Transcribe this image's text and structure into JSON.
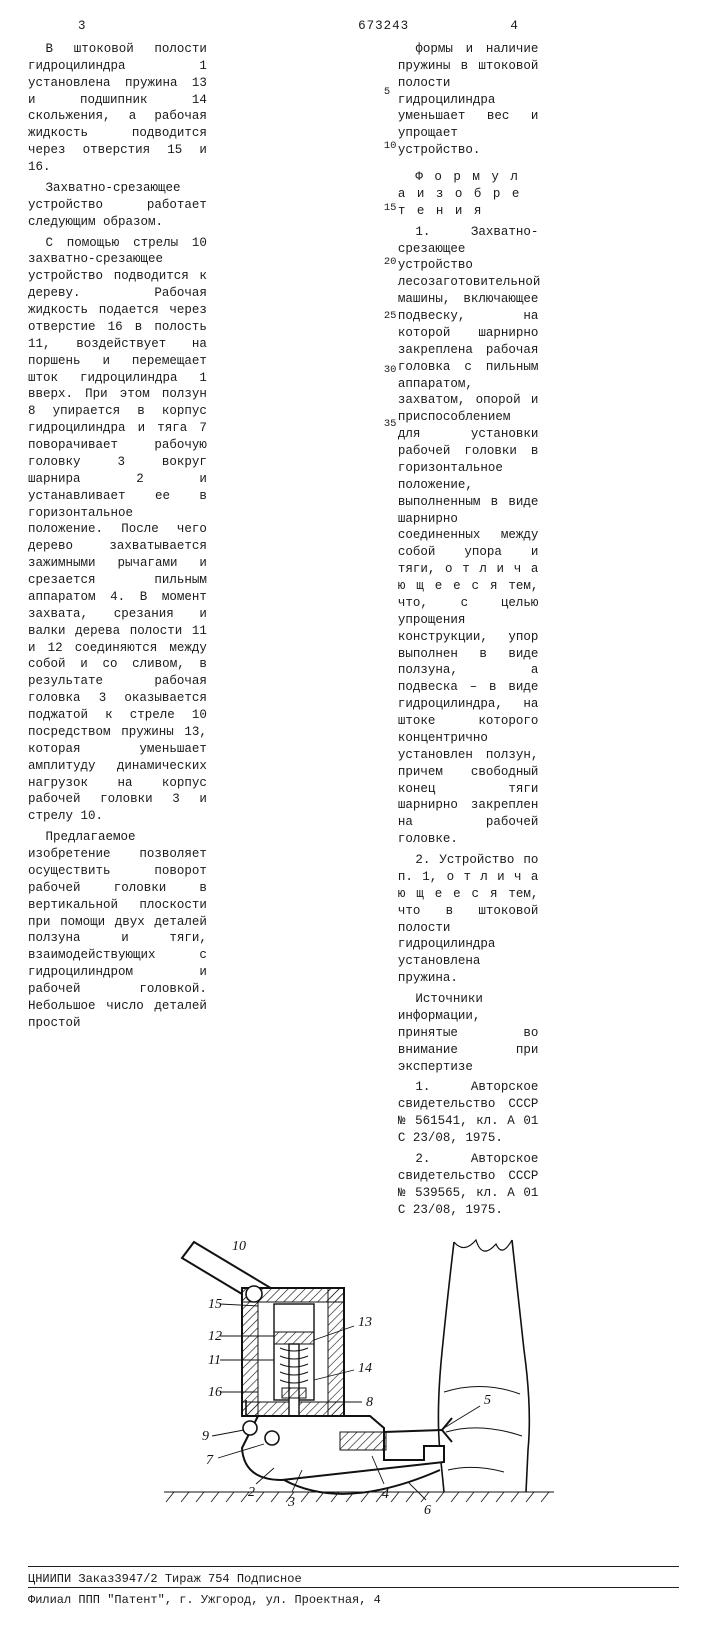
{
  "header": {
    "page_left": "3",
    "patent_no": "673243",
    "page_right": "4"
  },
  "left_col": {
    "p1": "В штоковой полости гидроцилиндра 1 установлена пружина 13 и подшипник 14 скольжения, а рабочая жидкость подводится через отверстия 15 и 16.",
    "p2": "Захватно-срезающее устройство работает следующим образом.",
    "p3": "С помощью стрелы 10 захватно-срезающее устройство подводится к дереву. Рабочая жидкость подается через отверстие 16 в полость 11, воздействует на поршень и перемещает шток гидроцилиндра 1 вверх. При этом ползун 8 упирается в корпус гидроцилиндра и тяга 7 поворачивает рабочую головку 3 вокруг шарнира 2 и устанавливает ее в горизонтальное положение. После чего дерево захватывается зажимными рычагами и срезается пильным аппаратом 4. В момент захвата, срезания и валки дерева полости 11 и 12 соединяются между собой и со сливом, в результате рабочая головка 3 оказывается поджатой к стреле 10 посредством пружины 13, которая уменьшает амплитуду динамических нагрузок на корпус рабочей головки 3 и стрелу 10.",
    "p4": "Предлагаемое изобретение позволяет осуществить поворот рабочей головки в вертикальной плоскости при помощи двух деталей ползуна и тяги, взаимодействующих с гидроцилиндром и рабочей головкой. Небольшое число деталей простой"
  },
  "right_col": {
    "p1": "формы и наличие пружины в штоковой полости гидроцилиндра уменьшает вес и упрощает устройство.",
    "formula_head": "Ф о р м у л а  и з о б р е т е н и я",
    "claim1": "1. Захватно-срезающее устройство лесозаготовительной машины, включающее подвеску, на которой шарнирно закреплена рабочая головка с пильным аппаратом, захватом, опорой и приспособлением для установки рабочей головки в горизонтальное положение, выполненным в виде шарнирно соединенных между собой упора и тяги, о т л и ч а ю щ е е с я  тем, что, с целью упрощения конструкции, упор выполнен в виде ползуна, а подвеска – в виде гидроцилиндра, на штоке которого концентрично установлен ползун, причем свободный конец тяги шарнирно закреплен на рабочей головке.",
    "claim2": "2. Устройство по п. 1, о т л и ч а ю щ е е с я  тем, что в штоковой полости гидроцилиндра установлена пружина.",
    "src_head": "Источники информации, принятые во внимание при экспертизе",
    "src1": "1. Авторское свидетельство СССР № 561541, кл. A 01 C 23/08, 1975.",
    "src2": "2. Авторское свидетельство СССР № 539565, кл. A 01 C 23/08, 1975."
  },
  "line_numbers": [
    "5",
    "10",
    "15",
    "20",
    "25",
    "30",
    "35"
  ],
  "figure": {
    "labels": [
      "10",
      "15",
      "12",
      "11",
      "16",
      "13",
      "14",
      "8",
      "9",
      "7",
      "2",
      "3",
      "4",
      "5",
      "6"
    ]
  },
  "footer": {
    "line1": "ЦНИИПИ Заказ3947/2 Тираж 754 Подписное",
    "line2": "Филиал ППП \"Патент\", г. Ужгород, ул. Проектная, 4"
  }
}
